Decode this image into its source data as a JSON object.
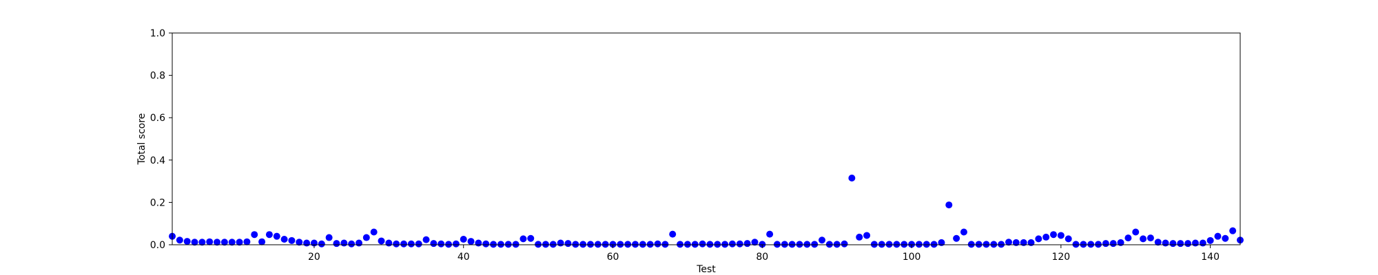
{
  "chart_data": {
    "type": "scatter",
    "title": "",
    "xlabel": "Test",
    "ylabel": "Total score",
    "xlim": [
      1,
      144
    ],
    "ylim": [
      0.0,
      1.0
    ],
    "xticks": [
      20,
      40,
      60,
      80,
      100,
      120,
      140
    ],
    "yticks": [
      0.0,
      0.2,
      0.4,
      0.6,
      0.8,
      1.0
    ],
    "ytick_labels": [
      "0.0",
      "0.2",
      "0.4",
      "0.6",
      "0.8",
      "1.0"
    ],
    "grid": false,
    "marker_color": "#0000ff",
    "series": [
      {
        "x": [
          1,
          2,
          3,
          4,
          5,
          6,
          7,
          8,
          9,
          10,
          11,
          12,
          13,
          14,
          15,
          16,
          17,
          18,
          19,
          20,
          21,
          22,
          23,
          24,
          25,
          26,
          27,
          28,
          29,
          30,
          31,
          32,
          33,
          34,
          35,
          36,
          37,
          38,
          39,
          40,
          41,
          42,
          43,
          44,
          45,
          46,
          47,
          48,
          49,
          50,
          51,
          52,
          53,
          54,
          55,
          56,
          57,
          58,
          59,
          60,
          61,
          62,
          63,
          64,
          65,
          66,
          67,
          68,
          69,
          70,
          71,
          72,
          73,
          74,
          75,
          76,
          77,
          78,
          79,
          80,
          81,
          82,
          83,
          84,
          85,
          86,
          87,
          88,
          89,
          90,
          91,
          92,
          93,
          94,
          95,
          96,
          97,
          98,
          99,
          100,
          101,
          102,
          103,
          104,
          105,
          106,
          107,
          108,
          109,
          110,
          111,
          112,
          113,
          114,
          115,
          116,
          117,
          118,
          119,
          120,
          121,
          122,
          123,
          124,
          125,
          126,
          127,
          128,
          129,
          130,
          131,
          132,
          133,
          134,
          135,
          136,
          137,
          138,
          139,
          140,
          141,
          142,
          143,
          144
        ],
        "y": [
          0.04,
          0.022,
          0.016,
          0.012,
          0.012,
          0.014,
          0.012,
          0.012,
          0.012,
          0.012,
          0.014,
          0.048,
          0.014,
          0.048,
          0.04,
          0.026,
          0.02,
          0.012,
          0.008,
          0.008,
          0.004,
          0.034,
          0.006,
          0.008,
          0.004,
          0.008,
          0.034,
          0.06,
          0.018,
          0.008,
          0.004,
          0.004,
          0.004,
          0.004,
          0.024,
          0.006,
          0.004,
          0.002,
          0.004,
          0.026,
          0.016,
          0.008,
          0.004,
          0.002,
          0.002,
          0.002,
          0.002,
          0.028,
          0.03,
          0.002,
          0.002,
          0.002,
          0.008,
          0.006,
          0.002,
          0.002,
          0.002,
          0.002,
          0.002,
          0.002,
          0.002,
          0.002,
          0.002,
          0.002,
          0.002,
          0.004,
          0.002,
          0.05,
          0.002,
          0.002,
          0.002,
          0.004,
          0.002,
          0.002,
          0.002,
          0.004,
          0.004,
          0.006,
          0.012,
          0.002,
          0.05,
          0.002,
          0.002,
          0.002,
          0.002,
          0.002,
          0.002,
          0.022,
          0.002,
          0.002,
          0.004,
          0.315,
          0.036,
          0.044,
          0.002,
          0.002,
          0.002,
          0.002,
          0.002,
          0.002,
          0.002,
          0.002,
          0.002,
          0.01,
          0.188,
          0.03,
          0.06,
          0.002,
          0.002,
          0.002,
          0.002,
          0.002,
          0.012,
          0.01,
          0.01,
          0.01,
          0.028,
          0.036,
          0.048,
          0.044,
          0.028,
          0.002,
          0.002,
          0.002,
          0.002,
          0.006,
          0.006,
          0.01,
          0.032,
          0.06,
          0.028,
          0.032,
          0.012,
          0.008,
          0.006,
          0.006,
          0.006,
          0.008,
          0.008,
          0.02,
          0.04,
          0.03,
          0.066,
          0.022
        ]
      }
    ]
  }
}
